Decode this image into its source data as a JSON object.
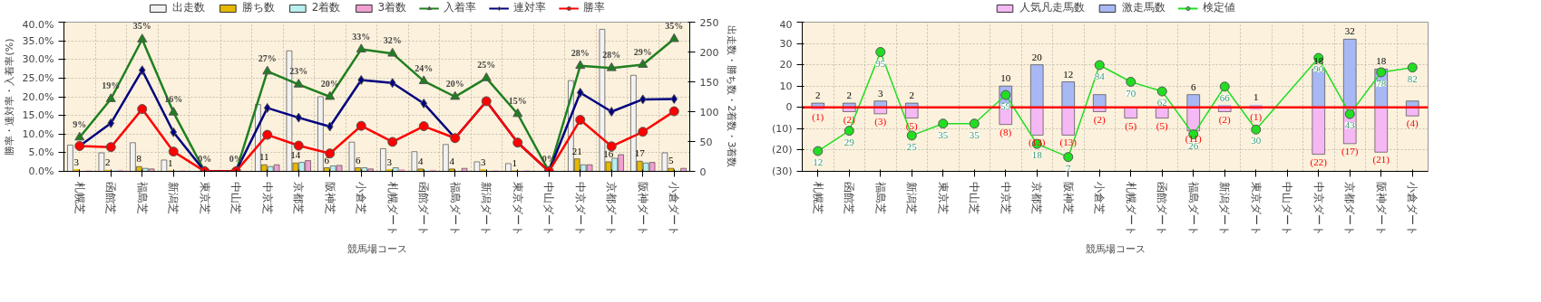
{
  "chart_data": [
    {
      "type": "bar",
      "xlabel": "競馬場コース",
      "ylabel": "勝率・連対率・入着率(%)",
      "y2label": "出走数・勝ち数・2着数・3着数",
      "categories": [
        "札幌芝",
        "函館芝",
        "福島芝",
        "新潟芝",
        "東京芝",
        "中山芝",
        "中京芝",
        "京都芝",
        "阪神芝",
        "小倉芝",
        "札幌ダート",
        "函館ダート",
        "福島ダート",
        "新潟ダート",
        "東京ダート",
        "中山ダート",
        "中京ダート",
        "京都ダート",
        "阪神ダート",
        "小倉ダート"
      ],
      "ylim": [
        0,
        40
      ],
      "yticks": [
        {
          "value": 0,
          "label": "0.0%"
        },
        {
          "value": 5,
          "label": "5.0%"
        },
        {
          "value": 10,
          "label": "10.0%"
        },
        {
          "value": 15,
          "label": "15.0%"
        },
        {
          "value": 20,
          "label": "20.0%"
        },
        {
          "value": 25,
          "label": "25.0%"
        },
        {
          "value": 30,
          "label": "30.0%"
        },
        {
          "value": 35,
          "label": "35.0%"
        },
        {
          "value": 40,
          "label": "40.0%"
        }
      ],
      "y2lim": [
        0,
        250
      ],
      "y2ticks": [
        0,
        50,
        100,
        150,
        200,
        250
      ],
      "grid": true,
      "legend": "top",
      "series": [
        {
          "name": "出走数",
          "axis": "y2",
          "color": "#f2f2f2",
          "values": [
            44,
            31,
            48,
            19,
            2,
            1,
            112,
            202,
            125,
            49,
            38,
            33,
            45,
            16,
            13,
            0,
            152,
            238,
            161,
            31
          ]
        },
        {
          "name": "勝ち数",
          "axis": "y2",
          "color": "#e6b800",
          "values": [
            3,
            2,
            8,
            1,
            0,
            0,
            11,
            14,
            6,
            6,
            3,
            4,
            4,
            3,
            1,
            0,
            21,
            16,
            17,
            5
          ],
          "value_labels": [
            "3",
            "2",
            "8",
            "1",
            null,
            null,
            "11",
            "14",
            "6",
            "6",
            "3",
            "4",
            "4",
            "3",
            "1",
            null,
            "21",
            "16",
            "17",
            "5"
          ]
        },
        {
          "name": "2着数",
          "axis": "y2",
          "color": "#b8f0f0",
          "values": [
            0,
            2,
            5,
            1,
            0,
            0,
            8,
            15,
            9,
            6,
            6,
            2,
            0,
            0,
            0,
            0,
            11,
            22,
            14,
            1
          ]
        },
        {
          "name": "3着数",
          "axis": "y2",
          "color": "#f0a0d0",
          "values": [
            1,
            2,
            4,
            1,
            0,
            0,
            11,
            18,
            10,
            4,
            3,
            2,
            5,
            1,
            1,
            0,
            11,
            28,
            15,
            5
          ]
        },
        {
          "name": "入着率",
          "type": "line",
          "color": "#1f7f1f",
          "marker": "triangle",
          "values": [
            9.1,
            19.4,
            35.4,
            15.8,
            0,
            0,
            26.8,
            23.3,
            20.0,
            32.7,
            31.6,
            24.2,
            20.0,
            25.0,
            15.4,
            0,
            28.3,
            27.7,
            28.6,
            35.5
          ],
          "value_labels": [
            "9%",
            "19%",
            "35%",
            "16%",
            "0%",
            "0%",
            "27%",
            "23%",
            "20%",
            "33%",
            "32%",
            "24%",
            "20%",
            "25%",
            "15%",
            "0%",
            "28%",
            "28%",
            "29%",
            "35%"
          ]
        },
        {
          "name": "連対率",
          "type": "line",
          "color": "#000080",
          "marker": "diamond",
          "values": [
            6.8,
            12.9,
            27.1,
            10.5,
            0,
            0,
            17.0,
            14.4,
            12.0,
            24.5,
            23.7,
            18.2,
            8.9,
            18.8,
            7.7,
            0,
            21.1,
            16.0,
            19.3,
            19.4
          ]
        },
        {
          "name": "勝率",
          "type": "line",
          "color": "#ff0000",
          "marker": "circle",
          "values": [
            6.8,
            6.5,
            16.7,
            5.3,
            0,
            0,
            9.8,
            6.9,
            4.8,
            12.2,
            7.9,
            12.1,
            8.9,
            18.8,
            7.7,
            0,
            13.8,
            6.7,
            10.6,
            16.1
          ]
        }
      ]
    },
    {
      "type": "bar",
      "xlabel": "競馬場コース",
      "categories": [
        "札幌芝",
        "函館芝",
        "福島芝",
        "新潟芝",
        "東京芝",
        "中山芝",
        "中京芝",
        "京都芝",
        "阪神芝",
        "小倉芝",
        "札幌ダート",
        "函館ダート",
        "福島ダート",
        "新潟ダート",
        "東京ダート",
        "中山ダート",
        "中京ダート",
        "京都ダート",
        "阪神ダート",
        "小倉ダート"
      ],
      "ylim": [
        -30,
        40
      ],
      "yticks": [
        40,
        30,
        20,
        10,
        0,
        {
          "value": -10,
          "label": "(10)"
        },
        {
          "value": -20,
          "label": "(20)"
        },
        {
          "value": -30,
          "label": "(30)"
        }
      ],
      "y2lim": [
        -5,
        120
      ],
      "grid": true,
      "legend": "top",
      "stacked": true,
      "ref_lines": [
        {
          "axis": "y",
          "value": 0,
          "color": "#ff0000"
        }
      ],
      "series": [
        {
          "name": "人気凡走馬数",
          "color": "#f4b8f4",
          "values": [
            -1,
            -2,
            -3,
            -5,
            0,
            0,
            -8,
            -13,
            -13,
            -2,
            -5,
            -5,
            -11,
            -2,
            -1,
            0,
            -22,
            -17,
            -21,
            -4
          ],
          "value_labels": [
            "(1)",
            "(2)",
            "(3)",
            "(5)",
            null,
            null,
            "(8)",
            "(13)",
            "(13)",
            "(2)",
            "(5)",
            "(5)",
            "(11)",
            "(2)",
            "(1)",
            null,
            "(22)",
            "(17)",
            "(21)",
            "(4)"
          ]
        },
        {
          "name": "激走馬数",
          "color": "#a8b8f4",
          "values": [
            2,
            2,
            3,
            2,
            0,
            0,
            10,
            20,
            12,
            6,
            null,
            null,
            6,
            1,
            1,
            0,
            18,
            32,
            18,
            3
          ],
          "value_labels": [
            "2",
            "2",
            "3",
            "2",
            null,
            null,
            "10",
            "20",
            "12",
            null,
            null,
            null,
            "6",
            null,
            "1",
            null,
            "18",
            "32",
            "18",
            null
          ]
        },
        {
          "name": "検定値",
          "type": "line",
          "axis": "y2",
          "color": "#22dd22",
          "marker": "circle",
          "values": [
            12,
            29,
            95,
            25,
            35,
            35,
            59,
            18,
            7,
            84,
            70,
            62,
            26,
            66,
            30,
            null,
            90,
            43,
            78,
            82
          ],
          "value_labels": [
            "12",
            "29",
            "95",
            "25",
            "35",
            "35",
            "59",
            "18",
            "7",
            "84",
            "70",
            "62",
            "26",
            "66",
            "30",
            null,
            "90",
            "43",
            "78",
            "82"
          ]
        }
      ]
    }
  ]
}
